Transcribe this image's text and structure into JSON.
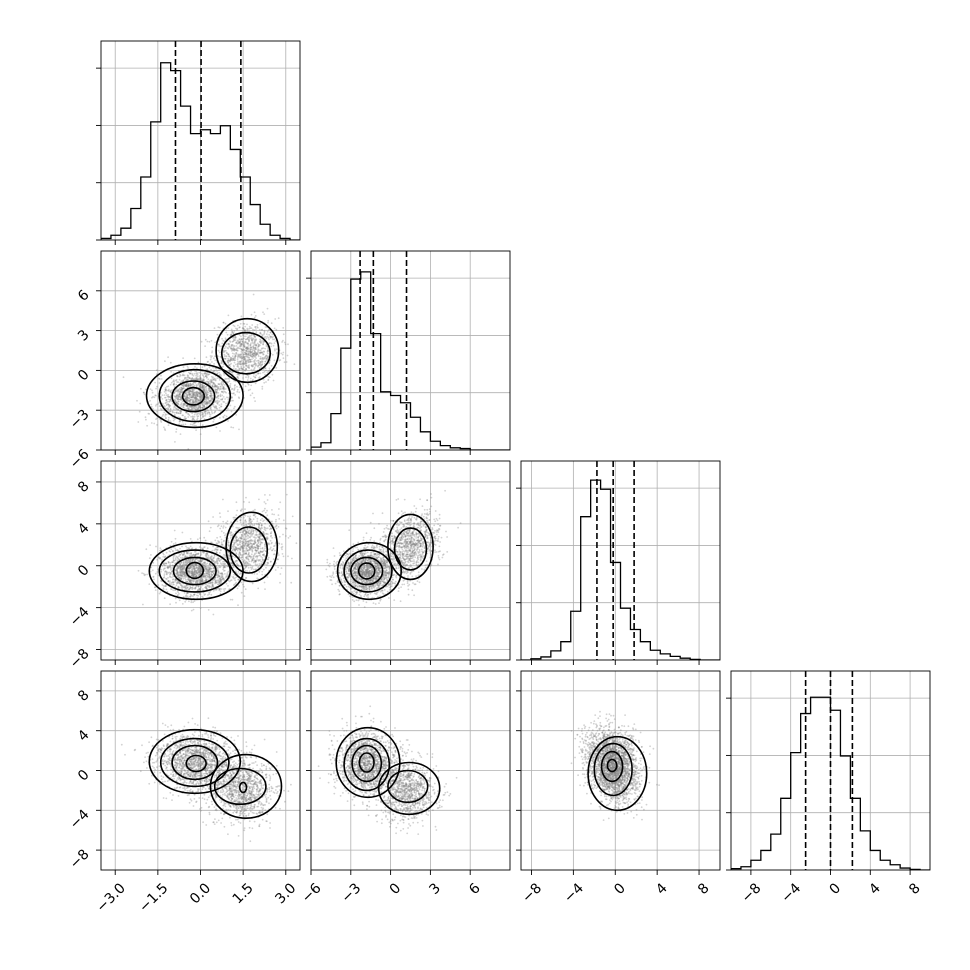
{
  "chart_data": {
    "type": "corner",
    "title": "",
    "params": [
      {
        "index": 0,
        "range": [
          -3.5,
          3.5
        ],
        "ticks": [
          "−3.0",
          "−1.5",
          "0.0",
          "1.5",
          "3.0"
        ],
        "tick_values": [
          -3.0,
          -1.5,
          0.0,
          1.5,
          3.0
        ],
        "quantiles": [
          -0.88,
          0.02,
          1.42
        ],
        "hist_edges_start": -3.5,
        "hist_bin_width": 0.35,
        "hist_counts": [
          2,
          6,
          15,
          40,
          80,
          150,
          225,
          215,
          170,
          135,
          140,
          135,
          145,
          115,
          80,
          45,
          20,
          6,
          2,
          0
        ],
        "hist_ymax": 240
      },
      {
        "index": 1,
        "range": [
          -6,
          9
        ],
        "ticks": [
          "−6",
          "−3",
          "0",
          "3",
          "6"
        ],
        "tick_values": [
          -6,
          -3,
          0,
          3,
          6
        ],
        "quantiles": [
          -2.3,
          -1.3,
          1.2
        ],
        "hist_edges_start": -6,
        "hist_bin_width": 0.75,
        "hist_counts": [
          4,
          10,
          50,
          140,
          235,
          245,
          160,
          80,
          75,
          65,
          45,
          25,
          12,
          6,
          3,
          2,
          0,
          0,
          0,
          0
        ],
        "hist_ymax": 260
      },
      {
        "index": 2,
        "range": [
          -9,
          10
        ],
        "ticks": [
          "−8",
          "−4",
          "0",
          "4",
          "8"
        ],
        "tick_values": [
          -8,
          -4,
          0,
          4,
          8
        ],
        "quantiles": [
          -1.75,
          -0.2,
          1.8
        ],
        "hist_edges_start": -9,
        "hist_bin_width": 0.95,
        "hist_counts": [
          0,
          2,
          5,
          15,
          30,
          80,
          235,
          295,
          280,
          160,
          85,
          50,
          30,
          16,
          10,
          6,
          3,
          1,
          0,
          0
        ],
        "hist_ymax": 310
      },
      {
        "index": 3,
        "range": [
          -10,
          10
        ],
        "ticks": [
          "−8",
          "−4",
          "0",
          "4",
          "8"
        ],
        "tick_values": [
          -8,
          -4,
          0,
          4,
          8
        ],
        "quantiles": [
          -2.5,
          0.0,
          2.2
        ],
        "hist_edges_start": -10,
        "hist_bin_width": 1.0,
        "hist_counts": [
          2,
          5,
          15,
          30,
          55,
          110,
          180,
          240,
          265,
          265,
          245,
          175,
          110,
          60,
          30,
          15,
          8,
          3,
          1,
          0
        ],
        "hist_ymax": 290
      }
    ],
    "pairs": [
      {
        "row": 1,
        "col": 0,
        "modes": [
          {
            "cx": -0.2,
            "cy": -1.9,
            "sx": 0.65,
            "sy": 1.0,
            "rho": 0.2,
            "weight": 0.62
          },
          {
            "cx": 1.6,
            "cy": 1.3,
            "sx": 0.55,
            "sy": 1.15,
            "rho": 0.1,
            "weight": 0.38
          }
        ],
        "levels": [
          [
            {
              "cx": -0.25,
              "cy": -1.95,
              "rx": 0.38,
              "ry": 0.65,
              "rot": 0
            },
            {
              "cx": -0.25,
              "cy": -1.95,
              "rx": 0.75,
              "ry": 1.15,
              "rot": 0
            }
          ],
          [
            {
              "cx": -0.2,
              "cy": -1.9,
              "rx": 1.25,
              "ry": 1.95,
              "rot": 0
            },
            {
              "cx": 1.6,
              "cy": 1.3,
              "rx": 0.85,
              "ry": 1.55,
              "rot": 0
            }
          ],
          [
            {
              "cx": -0.2,
              "cy": -1.9,
              "rx": 1.7,
              "ry": 2.4,
              "rot": 0
            },
            {
              "cx": 1.65,
              "cy": 1.5,
              "rx": 1.1,
              "ry": 2.4,
              "rot": 0
            }
          ]
        ]
      },
      {
        "row": 2,
        "col": 0,
        "modes": [
          {
            "cx": -0.15,
            "cy": -0.5,
            "sx": 0.65,
            "sy": 1.15,
            "rho": 0.0,
            "weight": 0.6
          },
          {
            "cx": 1.7,
            "cy": 2.0,
            "sx": 0.55,
            "sy": 1.6,
            "rho": 0.2,
            "weight": 0.4
          }
        ],
        "levels": [
          [
            {
              "cx": -0.2,
              "cy": -0.45,
              "rx": 0.3,
              "ry": 0.75,
              "rot": 0
            },
            {
              "cx": -0.2,
              "cy": -0.5,
              "rx": 0.75,
              "ry": 1.3,
              "rot": 0
            }
          ],
          [
            {
              "cx": -0.2,
              "cy": -0.5,
              "rx": 1.25,
              "ry": 2.0,
              "rot": 0
            },
            {
              "cx": 1.7,
              "cy": 1.5,
              "rx": 0.65,
              "ry": 2.2,
              "rot": 0
            }
          ],
          [
            {
              "cx": -0.15,
              "cy": -0.5,
              "rx": 1.65,
              "ry": 2.7,
              "rot": 0
            },
            {
              "cx": 1.8,
              "cy": 1.8,
              "rx": 0.9,
              "ry": 3.3,
              "rot": 0
            }
          ]
        ]
      },
      {
        "row": 2,
        "col": 1,
        "modes": [
          {
            "cx": -1.8,
            "cy": -0.5,
            "sx": 1.05,
            "sy": 1.15,
            "rho": 0.0,
            "weight": 0.6
          },
          {
            "cx": 1.5,
            "cy": 2.0,
            "sx": 1.1,
            "sy": 1.6,
            "rho": 0.2,
            "weight": 0.4
          }
        ],
        "levels": [
          [
            {
              "cx": -1.8,
              "cy": -0.5,
              "rx": 0.6,
              "ry": 0.75,
              "rot": 0
            },
            {
              "cx": -1.8,
              "cy": -0.5,
              "rx": 1.2,
              "ry": 1.3,
              "rot": 0
            }
          ],
          [
            {
              "cx": -1.7,
              "cy": -0.5,
              "rx": 1.8,
              "ry": 2.0,
              "rot": 0
            },
            {
              "cx": 1.5,
              "cy": 1.6,
              "rx": 1.2,
              "ry": 2.0,
              "rot": 0
            }
          ],
          [
            {
              "cx": -1.6,
              "cy": -0.5,
              "rx": 2.4,
              "ry": 2.7,
              "rot": 0
            },
            {
              "cx": 1.5,
              "cy": 1.8,
              "rx": 1.7,
              "ry": 3.1,
              "rot": 0
            }
          ]
        ]
      },
      {
        "row": 3,
        "col": 0,
        "modes": [
          {
            "cx": -0.2,
            "cy": 0.8,
            "sx": 0.7,
            "sy": 1.5,
            "rho": -0.1,
            "weight": 0.62
          },
          {
            "cx": 1.5,
            "cy": -2.0,
            "sx": 0.55,
            "sy": 1.5,
            "rho": 0.0,
            "weight": 0.38
          }
        ],
        "levels": [
          [
            {
              "cx": -0.15,
              "cy": 0.7,
              "rx": 0.35,
              "ry": 0.8,
              "rot": 0
            },
            {
              "cx": -0.2,
              "cy": 0.8,
              "rx": 0.8,
              "ry": 1.7,
              "rot": 0
            },
            {
              "cx": 1.5,
              "cy": -1.7,
              "rx": 0.12,
              "ry": 0.5,
              "rot": 0
            }
          ],
          [
            {
              "cx": -0.2,
              "cy": 0.8,
              "rx": 1.2,
              "ry": 2.4,
              "rot": 0
            },
            {
              "cx": 1.4,
              "cy": -1.6,
              "rx": 0.9,
              "ry": 1.8,
              "rot": 0
            }
          ],
          [
            {
              "cx": -0.2,
              "cy": 0.9,
              "rx": 1.6,
              "ry": 3.2,
              "rot": 0
            },
            {
              "cx": 1.6,
              "cy": -1.6,
              "rx": 1.25,
              "ry": 3.2,
              "rot": 0
            }
          ]
        ]
      },
      {
        "row": 3,
        "col": 1,
        "modes": [
          {
            "cx": -1.8,
            "cy": 0.8,
            "sx": 1.1,
            "sy": 1.5,
            "rho": -0.1,
            "weight": 0.62
          },
          {
            "cx": 1.2,
            "cy": -2.0,
            "sx": 1.1,
            "sy": 1.5,
            "rho": 0.0,
            "weight": 0.38
          }
        ],
        "levels": [
          [
            {
              "cx": -1.8,
              "cy": 0.8,
              "rx": 0.55,
              "ry": 0.95,
              "rot": 0
            },
            {
              "cx": -1.8,
              "cy": 0.7,
              "rx": 1.1,
              "ry": 1.8,
              "rot": 0
            }
          ],
          [
            {
              "cx": -1.8,
              "cy": 0.6,
              "rx": 1.7,
              "ry": 2.6,
              "rot": 0
            },
            {
              "cx": 1.3,
              "cy": -1.6,
              "rx": 1.5,
              "ry": 1.6,
              "rot": 0
            }
          ],
          [
            {
              "cx": -1.7,
              "cy": 0.8,
              "rx": 2.4,
              "ry": 3.5,
              "rot": 0
            },
            {
              "cx": 1.4,
              "cy": -1.8,
              "rx": 2.3,
              "ry": 2.6,
              "rot": 0
            }
          ]
        ]
      },
      {
        "row": 3,
        "col": 2,
        "modes": [
          {
            "cx": -0.3,
            "cy": 0.5,
            "sx": 1.2,
            "sy": 1.8,
            "rho": -0.25,
            "weight": 1.0
          }
        ],
        "levels": [
          [
            {
              "cx": -0.3,
              "cy": 0.5,
              "rx": 0.45,
              "ry": 0.6,
              "rot": 0
            },
            {
              "cx": -0.3,
              "cy": 0.4,
              "rx": 1.0,
              "ry": 1.5,
              "rot": 0
            }
          ],
          [
            {
              "cx": -0.2,
              "cy": 0.1,
              "rx": 1.8,
              "ry": 2.6,
              "rot": 0
            }
          ],
          [
            {
              "cx": 0.2,
              "cy": -0.3,
              "rx": 2.8,
              "ry": 3.7,
              "rot": 0
            }
          ]
        ]
      }
    ]
  }
}
